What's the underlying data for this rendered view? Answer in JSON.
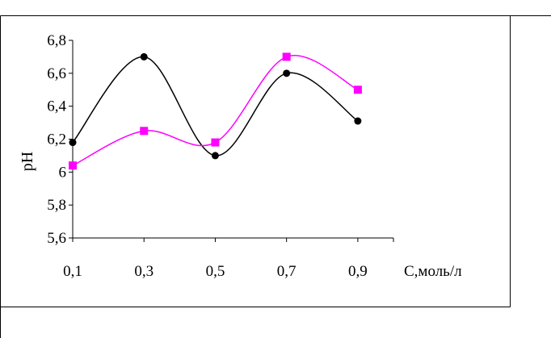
{
  "chart_data": {
    "type": "line",
    "title": "",
    "xlabel": "C,моль/л",
    "ylabel": "pH",
    "x": [
      0.1,
      0.3,
      0.5,
      0.7,
      0.9
    ],
    "x_tick_labels": [
      "0,1",
      "0,3",
      "0,5",
      "0,7",
      "0,9"
    ],
    "xlim": [
      0.1,
      1.0
    ],
    "ylim": [
      5.6,
      6.8
    ],
    "y_ticks": [
      5.6,
      5.8,
      6.0,
      6.2,
      6.4,
      6.6,
      6.8
    ],
    "y_tick_labels": [
      "5,6",
      "5,8",
      "6",
      "6,2",
      "6,4",
      "6,6",
      "6,8"
    ],
    "grid": false,
    "legend": "none",
    "series": [
      {
        "values": [
          6.18,
          6.7,
          6.1,
          6.6,
          6.31
        ],
        "color": "#000000",
        "marker": "circle"
      },
      {
        "values": [
          6.04,
          6.25,
          6.18,
          6.7,
          6.5
        ],
        "color": "#ff00ff",
        "marker": "square"
      }
    ]
  }
}
